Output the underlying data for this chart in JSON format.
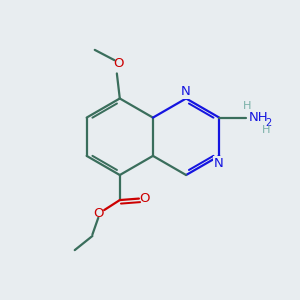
{
  "bg_color": "#e8edf0",
  "bond_color": "#3a6e5c",
  "n_color": "#1515e0",
  "o_color": "#cc0000",
  "nh_color": "#7ab0a8",
  "bond_width": 1.6,
  "figsize": [
    3.0,
    3.0
  ],
  "dpi": 100,
  "xlim": [
    0,
    10
  ],
  "ylim": [
    0,
    10
  ],
  "font_size_atom": 9.5,
  "font_size_sub": 7.0
}
